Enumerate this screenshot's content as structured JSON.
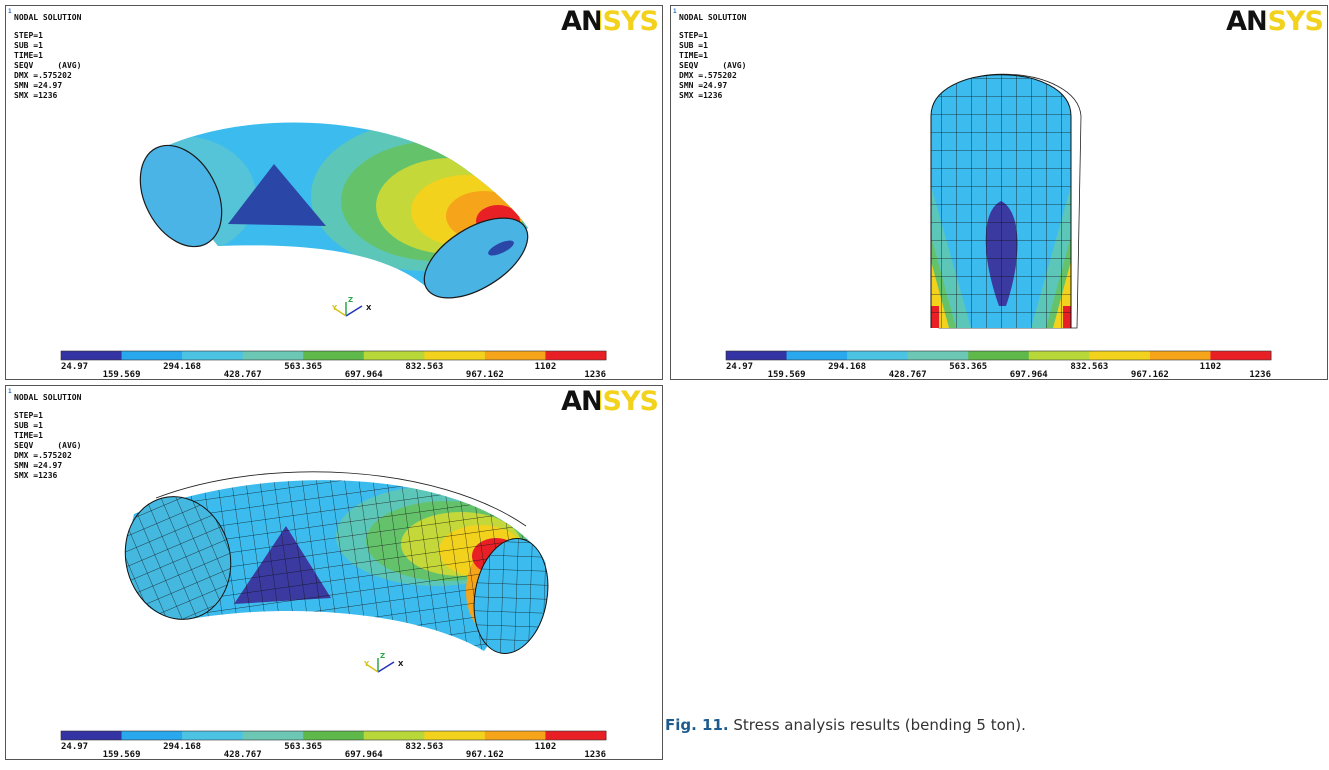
{
  "figure": {
    "panels": [
      {
        "number": "1",
        "header": [
          "NODAL SOLUTION",
          "STEP=1",
          "SUB =1",
          "TIME=1",
          "SEQV     (AVG)",
          "DMX =.575202",
          "SMN =24.97",
          "SMX =1236"
        ],
        "logo": "ANSYS",
        "triad": [
          "Y",
          "Z",
          "X"
        ],
        "legend": [
          "24.97",
          "159.569",
          "294.168",
          "428.767",
          "563.365",
          "697.964",
          "832.563",
          "967.162",
          "1102",
          "1236"
        ]
      },
      {
        "number": "1",
        "header": [
          "NODAL SOLUTION",
          "STEP=1",
          "SUB =1",
          "TIME=1",
          "SEQV     (AVG)",
          "DMX =.575202",
          "SMN =24.97",
          "SMX =1236"
        ],
        "logo": "ANSYS",
        "legend": [
          "24.97",
          "159.569",
          "294.168",
          "428.767",
          "563.365",
          "697.964",
          "832.563",
          "967.162",
          "1102",
          "1236"
        ]
      },
      {
        "number": "1",
        "header": [
          "NODAL SOLUTION",
          "STEP=1",
          "SUB =1",
          "TIME=1",
          "SEQV     (AVG)",
          "DMX =.575202",
          "SMN =24.97",
          "SMX =1236"
        ],
        "logo": "ANSYS",
        "triad": [
          "Y",
          "Z",
          "X"
        ],
        "legend": [
          "24.97",
          "159.569",
          "294.168",
          "428.767",
          "563.365",
          "697.964",
          "832.563",
          "967.162",
          "1102",
          "1236"
        ]
      }
    ],
    "caption": {
      "label": "Fig. 11.",
      "text": "Stress analysis results (bending 5 ton)."
    }
  }
}
